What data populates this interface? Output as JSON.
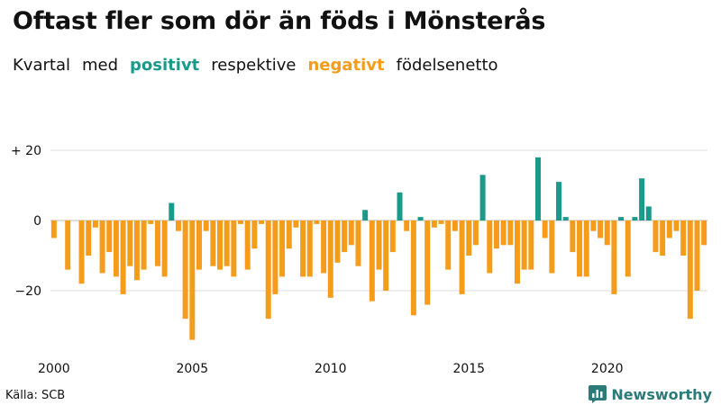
{
  "title": "Oftast fler som dör än föds i Mönsterås",
  "subtitle": {
    "part1": "Kvartal",
    "part2": "med",
    "positive": "positivt",
    "part3": "respektive",
    "negative": "negativt",
    "part4": "födelsenetto"
  },
  "source": "Källa: SCB",
  "brand": {
    "name": "Newsworthy",
    "icon": "newsworthy-logo-icon"
  },
  "colors": {
    "positive": "#1a9a8b",
    "negative": "#f59d1b",
    "grid": "#dddddd",
    "axis": "#bbbbbb",
    "brand": "#2b7b79"
  },
  "chart_data": {
    "type": "bar",
    "title": "Oftast fler som dör än föds i Mönsterås",
    "xlabel": "",
    "ylabel": "",
    "ylim": [
      -40,
      25
    ],
    "start": "2000 Q1",
    "frequency": "quarter",
    "x_ticks": [
      "2000",
      "2005",
      "2010",
      "2015",
      "2020"
    ],
    "y_ticks": [
      {
        "value": 20,
        "label": "+ 20"
      },
      {
        "value": 0,
        "label": "0"
      },
      {
        "value": -20,
        "label": "−20"
      }
    ],
    "values": [
      -5,
      0,
      -14,
      0,
      -18,
      -10,
      -2,
      -15,
      -9,
      -16,
      -21,
      -13,
      -17,
      -14,
      -1,
      -13,
      -16,
      5,
      -3,
      -28,
      -34,
      -14,
      -3,
      -13,
      -14,
      -13,
      -16,
      -1,
      -14,
      -8,
      -1,
      -28,
      -21,
      -16,
      -8,
      -2,
      -16,
      -16,
      -1,
      -15,
      -22,
      -12,
      -9,
      -7,
      -13,
      3,
      -23,
      -14,
      -20,
      -9,
      8,
      -3,
      -27,
      1,
      -24,
      -2,
      -1,
      -14,
      -3,
      -21,
      -10,
      -7,
      13,
      -15,
      -8,
      -7,
      -7,
      -18,
      -14,
      -14,
      18,
      -5,
      -15,
      11,
      1,
      -9,
      -16,
      -16,
      -3,
      -5,
      -7,
      -21,
      1,
      -16,
      1,
      12,
      4,
      -9,
      -10,
      -5,
      -3,
      -10,
      -28,
      -20,
      -7
    ]
  }
}
